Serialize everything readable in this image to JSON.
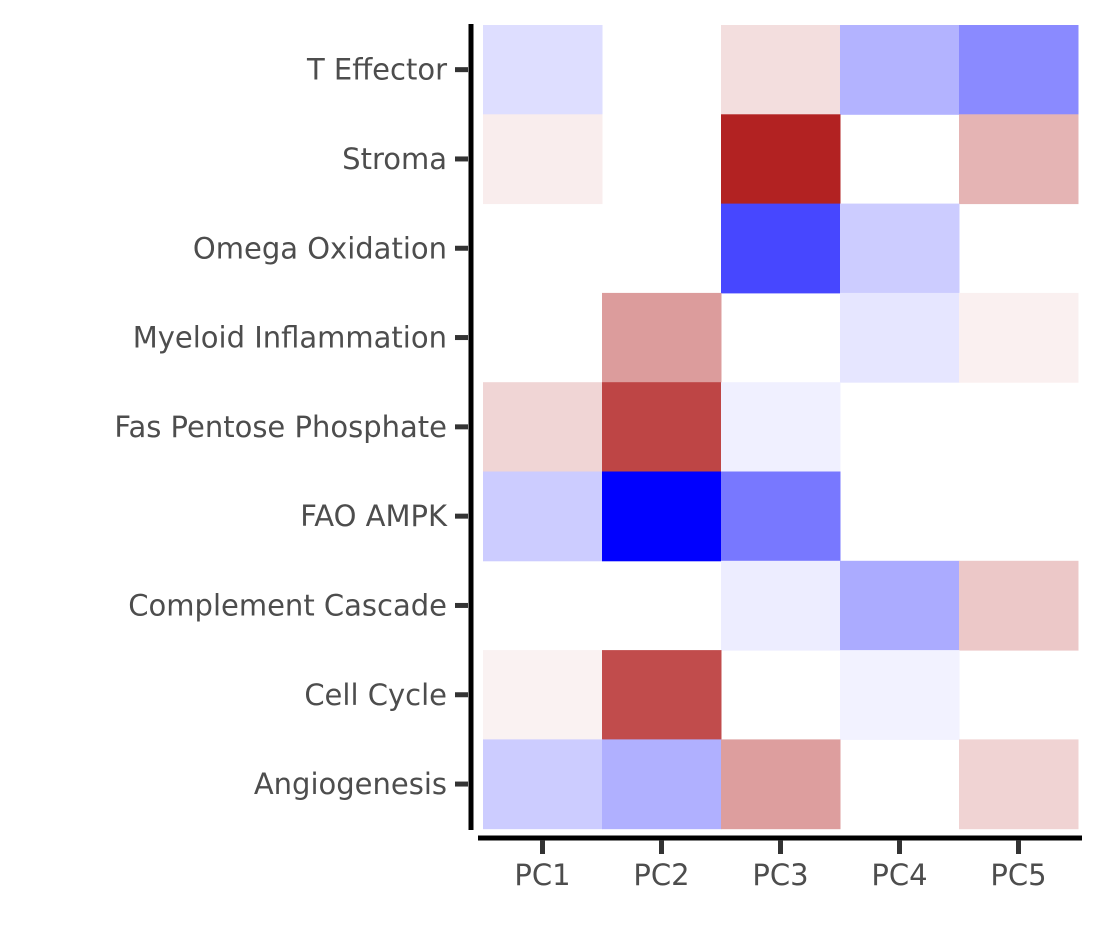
{
  "chart_data": {
    "type": "heatmap",
    "title": "",
    "xlabel": "",
    "ylabel": "",
    "x_categories": [
      "PC1",
      "PC2",
      "PC3",
      "PC4",
      "PC5"
    ],
    "y_categories": [
      "T Effector",
      "Stroma",
      "Omega Oxidation",
      "Myeloid Inflammation",
      "Fas Pentose Phosphate",
      "FAO AMPK",
      "Complement Cascade",
      "Cell Cycle",
      "Angiogenesis"
    ],
    "values": [
      [
        -0.13,
        null,
        0.15,
        -0.3,
        -0.46
      ],
      [
        0.08,
        null,
        1.0,
        null,
        0.34
      ],
      [
        null,
        null,
        -0.72,
        -0.2,
        null
      ],
      [
        null,
        0.45,
        null,
        -0.1,
        0.07
      ],
      [
        0.19,
        0.84,
        -0.06,
        null,
        null
      ],
      [
        -0.2,
        -1.0,
        -0.53,
        null,
        null
      ],
      [
        null,
        null,
        -0.07,
        -0.33,
        0.25
      ],
      [
        0.06,
        0.81,
        null,
        -0.05,
        null
      ],
      [
        -0.2,
        -0.31,
        0.44,
        null,
        0.2
      ]
    ],
    "color_scale": {
      "low": "#0000ff",
      "mid": "#ffffff",
      "high": "#b22222",
      "domain": [
        -1,
        0,
        1
      ]
    },
    "grid": false,
    "legend": "none"
  }
}
